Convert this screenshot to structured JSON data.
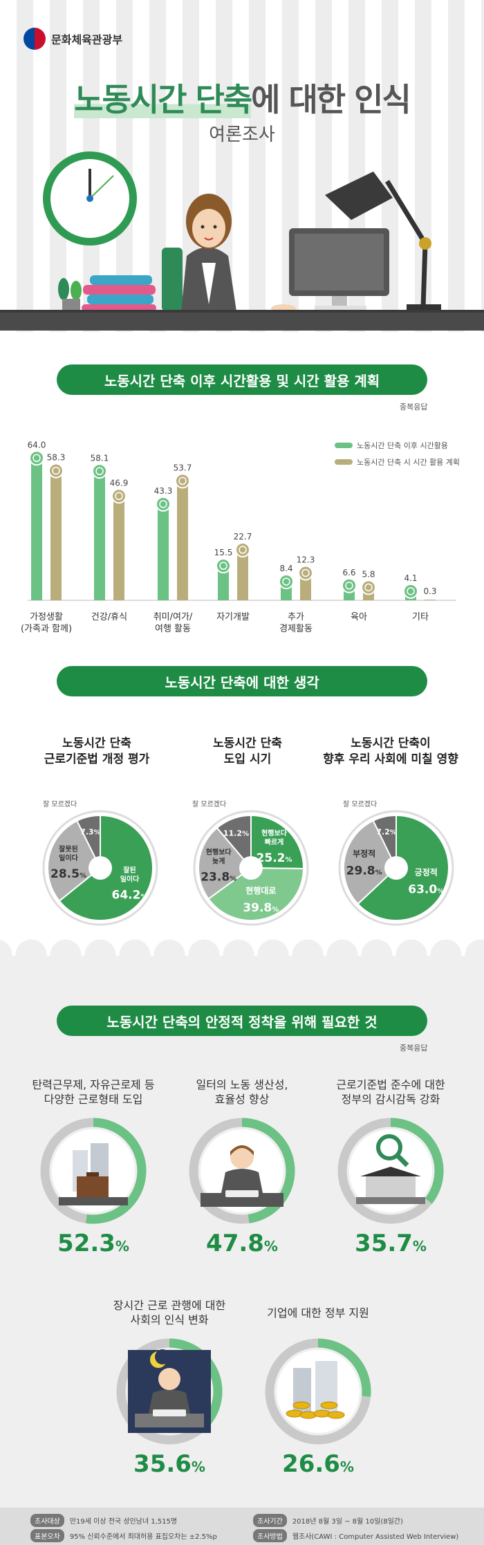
{
  "header": {
    "org": "문화체육관광부",
    "title_highlight": "노동시간 단축",
    "title_rest": "에 대한 인식",
    "subtitle": "여론조사"
  },
  "section1": {
    "title": "노동시간 단축 이후 시간활용 및 시간 활용 계획",
    "note": "중복응답"
  },
  "section2": {
    "title": "노동시간 단축에 대한 생각"
  },
  "section3": {
    "title": "노동시간 단축의 안정적 정착을 위해 필요한 것",
    "note": "중복응답"
  },
  "colors": {
    "green": "#6cc184",
    "khaki": "#b9ae7b",
    "dark_green": "#1e8c45",
    "mid_green": "#3aa056",
    "light_green": "#7fc98f",
    "grey": "#9e9e9e",
    "dark_grey": "#6e6e6e"
  },
  "chart_data": [
    {
      "type": "bar",
      "categories": [
        "가정생활\n(가족과 함께)",
        "건강/휴식",
        "취미/여가/\n여행 활동",
        "자기개발",
        "추가\n경제활동",
        "육아",
        "기타"
      ],
      "series": [
        {
          "name": "노동시간 단축 이후 시간활용",
          "values": [
            64.0,
            58.1,
            43.3,
            15.5,
            8.4,
            6.6,
            4.1
          ]
        },
        {
          "name": "노동시간 단축 시 시간 활용 계획",
          "values": [
            58.3,
            46.9,
            53.7,
            22.7,
            12.3,
            5.8,
            0.3
          ]
        }
      ],
      "value_labels": [
        [
          "64.0",
          "58.1",
          "43.3",
          "15.5",
          "8.4",
          "6.6",
          "4.1"
        ],
        [
          "58.3",
          "46.9",
          "53.7",
          "22.7",
          "12.3",
          "5.8",
          "0.3"
        ]
      ],
      "legend": "top-right",
      "ylim": [
        0,
        70
      ]
    },
    {
      "type": "pie",
      "title": [
        "노동시간 단축",
        "근로기준법 개정 평가"
      ],
      "unknown_label": "잘 모르겠다",
      "slices": [
        {
          "label": "잘된\n일이다",
          "value": 64.2,
          "text": "64.2",
          "unit": "%"
        },
        {
          "label": "잘못된\n일이다",
          "value": 28.5,
          "text": "28.5",
          "unit": "%"
        },
        {
          "label": "",
          "value": 7.3,
          "text": "7.3",
          "unit": "%"
        }
      ]
    },
    {
      "type": "pie",
      "title": [
        "노동시간 단축",
        "도입 시기"
      ],
      "unknown_label": "잘 모르겠다",
      "slices": [
        {
          "label": "현행보다\n빠르게",
          "value": 25.2,
          "text": "25.2",
          "unit": "%"
        },
        {
          "label": "현행대로",
          "value": 39.8,
          "text": "39.8",
          "unit": "%"
        },
        {
          "label": "현행보다\n늦게",
          "value": 23.8,
          "text": "23.8",
          "unit": "%"
        },
        {
          "label": "",
          "value": 11.2,
          "text": "11.2",
          "unit": "%"
        }
      ]
    },
    {
      "type": "pie",
      "title": [
        "노동시간 단축이",
        "향후 우리 사회에 미칠 영향"
      ],
      "unknown_label": "잘 모르겠다",
      "slices": [
        {
          "label": "긍정적",
          "value": 63.0,
          "text": "63.0",
          "unit": "%"
        },
        {
          "label": "부정적",
          "value": 29.8,
          "text": "29.8",
          "unit": "%"
        },
        {
          "label": "",
          "value": 7.2,
          "text": "7.2",
          "unit": "%"
        }
      ]
    },
    {
      "type": "pie",
      "items": [
        {
          "title": [
            "탄력근무제, 자유근로제 등",
            "다양한 근로형태 도입"
          ],
          "value": 52.3,
          "text": "52.3",
          "unit": "%"
        },
        {
          "title": [
            "일터의 노동 생산성,",
            "효율성 향상"
          ],
          "value": 47.8,
          "text": "47.8",
          "unit": "%"
        },
        {
          "title": [
            "근로기준법 준수에 대한",
            "정부의 감시감독 강화"
          ],
          "value": 35.7,
          "text": "35.7",
          "unit": "%"
        },
        {
          "title": [
            "장시간 근로 관행에 대한",
            "사회의 인식 변화"
          ],
          "value": 35.6,
          "text": "35.6",
          "unit": "%"
        },
        {
          "title": [
            "기업에 대한 정부 지원"
          ],
          "value": 26.6,
          "text": "26.6",
          "unit": "%"
        }
      ]
    }
  ],
  "footer": {
    "target_tag": "조사대상",
    "target": "만19세 이상 전국 성인남녀 1,515명",
    "error_tag": "표본오차",
    "error": "95% 신뢰수준에서 최대허용 표집오차는 ±2.5%p",
    "period_tag": "조사기간",
    "period": "2018년 8월 3일 ~ 8월 10일(8일간)",
    "method_tag": "조사방법",
    "method": "웹조사(CAWI : Computer Assisted Web Interview)"
  }
}
